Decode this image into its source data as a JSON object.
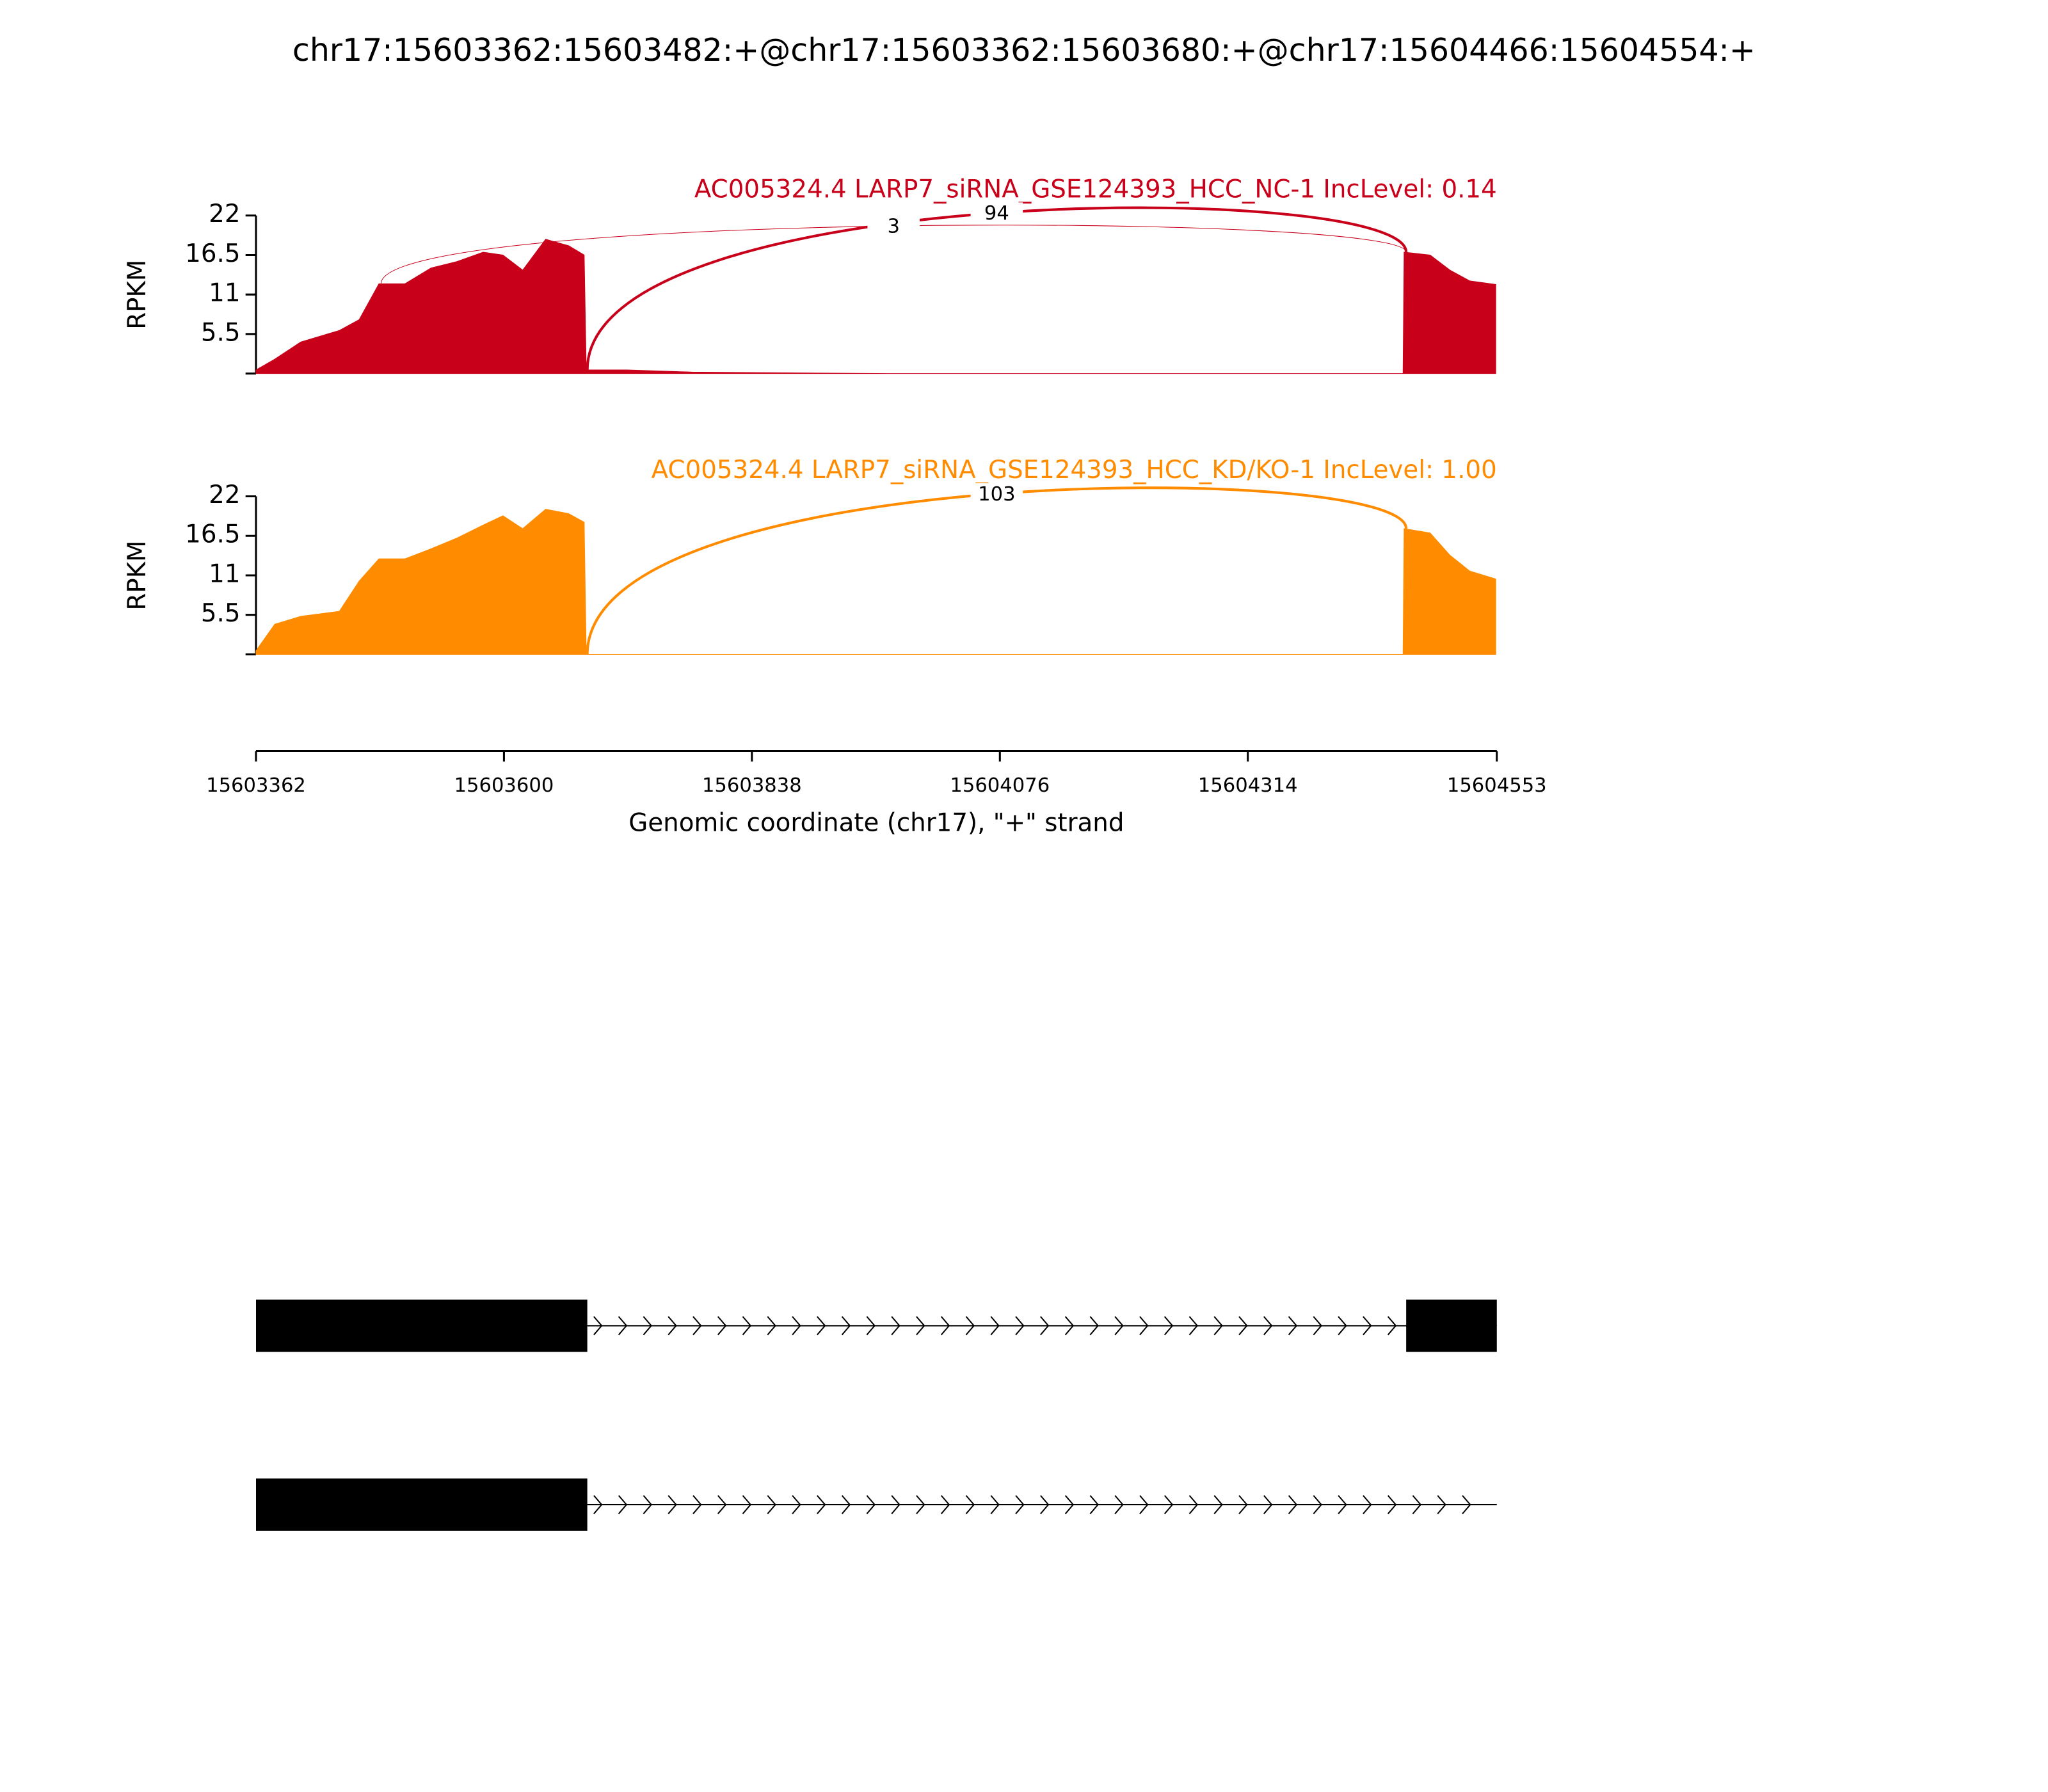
{
  "chart_data": {
    "type": "area",
    "title": "chr17:15603362:15603482:+@chr17:15603362:15603680:+@chr17:15604466:15604554:+",
    "xlabel": "Genomic coordinate (chr17), \"+\" strand",
    "xlim": [
      15603362,
      15604553
    ],
    "xticks": [
      15603362,
      15603600,
      15603838,
      15604076,
      15604314,
      15604553
    ],
    "panels": [
      {
        "title": "AC005324.4 LARP7_siRNA_GSE124393_HCC_NC-1 IncLevel: 0.14",
        "color": "#c8001a",
        "ylabel": "RPKM",
        "ylim": [
          0,
          22
        ],
        "yticks": [
          5.5,
          11,
          16.5,
          22
        ],
        "x": [
          15603362,
          15603380,
          15603405,
          15603442,
          15603461,
          15603480,
          15603505,
          15603530,
          15603555,
          15603580,
          15603599,
          15603618,
          15603640,
          15603662,
          15603677,
          15603679,
          15603718,
          15603781,
          15603868,
          15603969,
          15604463,
          15604464,
          15604489,
          15604508,
          15604527,
          15604552
        ],
        "values": [
          0.5,
          2,
          4.4,
          6,
          7.5,
          12.5,
          12.5,
          14.7,
          15.6,
          16.9,
          16.5,
          14.4,
          18.7,
          17.8,
          16.5,
          0.5,
          0.5,
          0.2,
          0.1,
          0,
          0,
          16.9,
          16.5,
          14.4,
          12.9,
          12.4
        ],
        "junctions": [
          {
            "start": 15603680,
            "end": 15604466,
            "count": 94
          },
          {
            "start": 15603482,
            "end": 15604466,
            "count": 3
          }
        ]
      },
      {
        "title": "AC005324.4 LARP7_siRNA_GSE124393_HCC_KD/KO-1 IncLevel: 1.00",
        "color": "#ff8c00",
        "ylabel": "RPKM",
        "ylim": [
          0,
          22
        ],
        "yticks": [
          5.5,
          11,
          16.5,
          22
        ],
        "x": [
          15603362,
          15603380,
          15603405,
          15603442,
          15603461,
          15603480,
          15603505,
          15603530,
          15603555,
          15603580,
          15603599,
          15603618,
          15603640,
          15603662,
          15603677,
          15603679,
          15604463,
          15604464,
          15604489,
          15604508,
          15604527,
          15604552
        ],
        "values": [
          0.5,
          4.2,
          5.3,
          6,
          10.2,
          13.3,
          13.3,
          14.7,
          16.2,
          18,
          19.3,
          17.5,
          20.2,
          19.6,
          18.4,
          0,
          0,
          17.5,
          16.9,
          13.8,
          11.6,
          10.5
        ],
        "junctions": [
          {
            "start": 15603680,
            "end": 15604466,
            "count": 103
          }
        ]
      }
    ],
    "transcripts": [
      {
        "exons": [
          [
            15603362,
            15603680
          ],
          [
            15604466,
            15604553
          ]
        ]
      },
      {
        "exons": [
          [
            15603362,
            15603680
          ]
        ]
      }
    ]
  }
}
